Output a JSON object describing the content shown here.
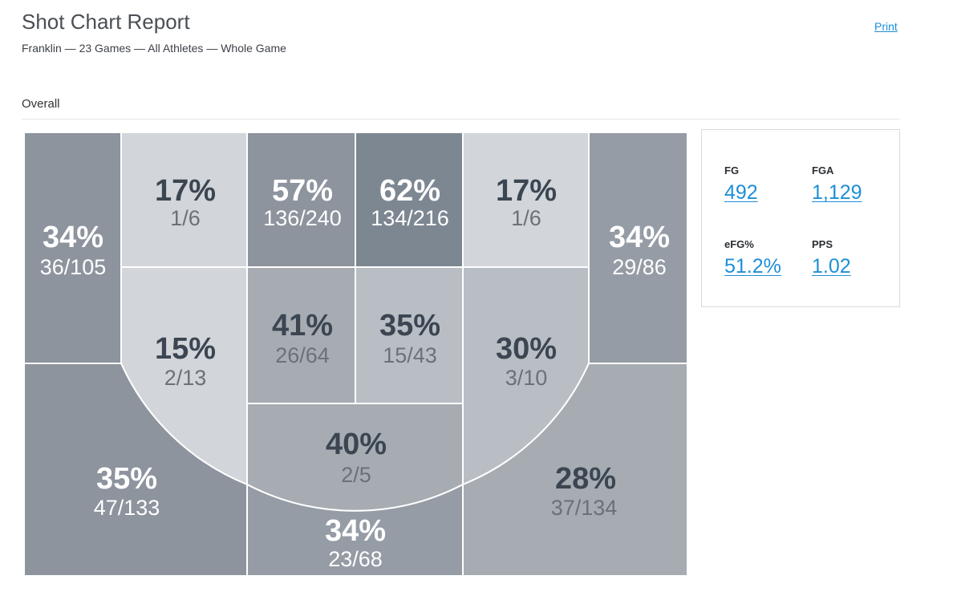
{
  "header": {
    "title": "Shot Chart Report",
    "subtitle": "Franklin — 23 Games — All Athletes — Whole Game",
    "print_label": "Print"
  },
  "section": {
    "label": "Overall"
  },
  "colors": {
    "light": "#d2d5d9",
    "mid_light": "#b9bec4",
    "mid": "#a6acb2",
    "mid_dark": "#959ca5",
    "dark": "#8d949e",
    "darkest": "#7d8791",
    "text_dark": "#3b4652",
    "text_light": "#ffffff",
    "link": "#1e8fd6"
  },
  "zones": [
    {
      "id": "left-corner",
      "pct": "34%",
      "ratio": "36/105"
    },
    {
      "id": "left-baseline-mid",
      "pct": "17%",
      "ratio": "1/6"
    },
    {
      "id": "left-paint-low",
      "pct": "57%",
      "ratio": "136/240"
    },
    {
      "id": "right-paint-low",
      "pct": "62%",
      "ratio": "134/216"
    },
    {
      "id": "right-baseline-mid",
      "pct": "17%",
      "ratio": "1/6"
    },
    {
      "id": "right-corner",
      "pct": "34%",
      "ratio": "29/86"
    },
    {
      "id": "left-elbow-mid",
      "pct": "15%",
      "ratio": "2/13"
    },
    {
      "id": "left-paint-high",
      "pct": "41%",
      "ratio": "26/64"
    },
    {
      "id": "right-paint-high",
      "pct": "35%",
      "ratio": "15/43"
    },
    {
      "id": "right-elbow-mid",
      "pct": "30%",
      "ratio": "3/10"
    },
    {
      "id": "top-key",
      "pct": "40%",
      "ratio": "2/5"
    },
    {
      "id": "left-wing-three",
      "pct": "35%",
      "ratio": "47/133"
    },
    {
      "id": "top-three",
      "pct": "34%",
      "ratio": "23/68"
    },
    {
      "id": "right-wing-three",
      "pct": "28%",
      "ratio": "37/134"
    }
  ],
  "stats": [
    {
      "label": "FG",
      "value": "492"
    },
    {
      "label": "FGA",
      "value": "1,129"
    },
    {
      "label": "eFG%",
      "value": "51.2%"
    },
    {
      "label": "PPS",
      "value": "1.02"
    }
  ]
}
